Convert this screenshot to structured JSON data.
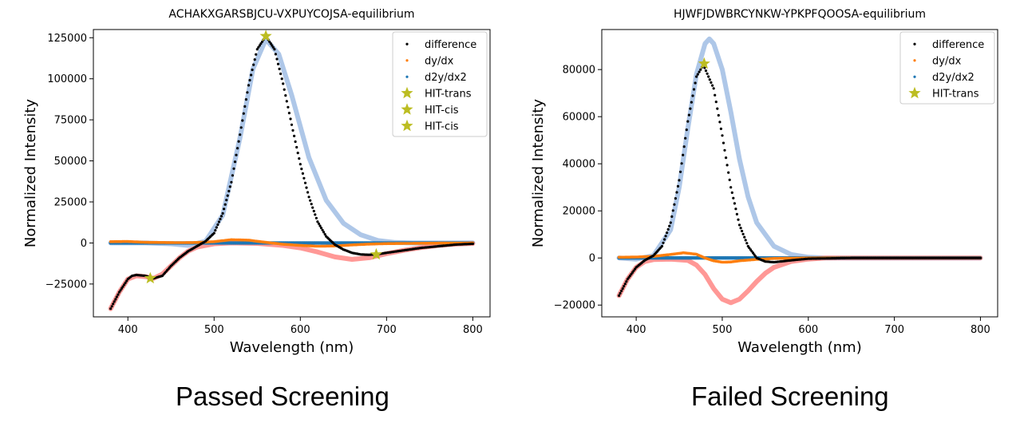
{
  "colors": {
    "difference": "#000000",
    "dy_dx": "#ff7f0e",
    "d2y_dx2": "#1f77b4",
    "hit_marker": "#bcbd22",
    "fit_blue": "#aec7e8",
    "fit_red": "#ff9896"
  },
  "captions": {
    "left": "Passed Screening",
    "right": "Failed Screening"
  },
  "chart_data": [
    {
      "type": "scatter",
      "title": "ACHAKXGARSBJCU-VXPUYCOJSA-equilibrium",
      "xlabel": "Wavelength (nm)",
      "ylabel": "Normalized Intensity",
      "xlim": [
        360,
        820
      ],
      "ylim": [
        -45000,
        130000
      ],
      "xticks": [
        400,
        500,
        600,
        700,
        800
      ],
      "yticks": [
        -25000,
        0,
        25000,
        50000,
        75000,
        100000,
        125000
      ],
      "ytick_labels": [
        "−25000",
        "0",
        "25000",
        "50000",
        "75000",
        "100000",
        "125000"
      ],
      "grid": false,
      "legend_position": "top-right",
      "legend": [
        "difference",
        "dy/dx",
        "d2y/dx2",
        "HIT-trans",
        "HIT-cis",
        "HIT-cis"
      ],
      "series": [
        {
          "name": "difference",
          "marker": "dot",
          "x": [
            380,
            390,
            400,
            405,
            410,
            420,
            430,
            440,
            450,
            460,
            470,
            480,
            490,
            500,
            510,
            520,
            530,
            540,
            550,
            560,
            570,
            580,
            590,
            600,
            610,
            620,
            630,
            640,
            650,
            660,
            670,
            680,
            690,
            700,
            720,
            740,
            760,
            780,
            800
          ],
          "y": [
            -40000,
            -30000,
            -22000,
            -20000,
            -19500,
            -20000,
            -21500,
            -20000,
            -14000,
            -9000,
            -5000,
            -2000,
            1000,
            6000,
            18000,
            37000,
            66000,
            96000,
            118000,
            126000,
            118000,
            97000,
            72000,
            48000,
            28000,
            13000,
            4000,
            -1000,
            -4000,
            -6000,
            -7000,
            -7200,
            -6800,
            -6000,
            -4500,
            -3000,
            -2000,
            -1000,
            -500
          ]
        },
        {
          "name": "dy/dx",
          "marker": "dot",
          "x": [
            380,
            400,
            420,
            440,
            460,
            480,
            500,
            520,
            540,
            560,
            580,
            600,
            620,
            640,
            660,
            680,
            700,
            720,
            740,
            760,
            780,
            800
          ],
          "y": [
            800,
            900,
            400,
            300,
            200,
            300,
            800,
            2000,
            1700,
            400,
            -800,
            -1500,
            -2000,
            -1800,
            -1200,
            -700,
            -400,
            -300,
            -200,
            -100,
            -50,
            0
          ]
        },
        {
          "name": "d2y/dx2",
          "marker": "dot",
          "x": [
            380,
            800
          ],
          "y": [
            0,
            0
          ]
        },
        {
          "name": "fit-blue",
          "marker": "thick-line",
          "x": [
            380,
            420,
            450,
            470,
            490,
            510,
            530,
            545,
            560,
            575,
            590,
            610,
            630,
            650,
            670,
            690,
            710,
            730,
            760,
            800
          ],
          "y": [
            0,
            0,
            -500,
            -1500,
            1000,
            17000,
            64000,
            106000,
            124000,
            115000,
            90000,
            52000,
            26000,
            12000,
            5000,
            1500,
            300,
            0,
            0,
            0
          ]
        },
        {
          "name": "fit-red",
          "marker": "thick-line",
          "x": [
            380,
            390,
            400,
            410,
            420,
            430,
            440,
            450,
            460,
            470,
            480,
            500,
            520,
            550,
            580,
            600,
            620,
            640,
            660,
            680,
            700,
            720,
            740,
            760,
            780,
            800
          ],
          "y": [
            -40000,
            -30000,
            -22000,
            -20000,
            -20500,
            -21500,
            -19000,
            -14000,
            -9000,
            -5000,
            -2500,
            -500,
            0,
            -300,
            -1500,
            -3000,
            -5500,
            -8500,
            -10000,
            -9000,
            -6500,
            -4500,
            -2800,
            -1500,
            -700,
            -300
          ]
        },
        {
          "name": "HIT-trans",
          "marker": "star",
          "x": [
            560
          ],
          "y": [
            126000
          ]
        },
        {
          "name": "HIT-cis",
          "marker": "star",
          "x": [
            426
          ],
          "y": [
            -21500
          ]
        },
        {
          "name": "HIT-cis",
          "marker": "star",
          "x": [
            688
          ],
          "y": [
            -7000
          ]
        }
      ]
    },
    {
      "type": "scatter",
      "title": "HJWFJDWBRCYNKW-YPKPFQOOSA-equilibrium",
      "xlabel": "Wavelength (nm)",
      "ylabel": "Normalized Intensity",
      "xlim": [
        360,
        820
      ],
      "ylim": [
        -25000,
        97000
      ],
      "xticks": [
        400,
        500,
        600,
        700,
        800
      ],
      "yticks": [
        -20000,
        0,
        20000,
        40000,
        60000,
        80000
      ],
      "ytick_labels": [
        "−20000",
        "0",
        "20000",
        "40000",
        "60000",
        "80000"
      ],
      "grid": false,
      "legend_position": "top-right",
      "legend": [
        "difference",
        "dy/dx",
        "d2y/dx2",
        "HIT-trans"
      ],
      "series": [
        {
          "name": "difference",
          "marker": "dot",
          "x": [
            380,
            390,
            400,
            410,
            420,
            430,
            440,
            450,
            460,
            470,
            478,
            490,
            500,
            510,
            520,
            530,
            540,
            550,
            560,
            580,
            600,
            650,
            700,
            800
          ],
          "y": [
            -16000,
            -9000,
            -4000,
            -1000,
            1000,
            5000,
            15000,
            33000,
            58000,
            77000,
            82000,
            72000,
            52000,
            30000,
            14000,
            5000,
            0,
            -1500,
            -1800,
            -1000,
            -300,
            0,
            0,
            0
          ]
        },
        {
          "name": "dy/dx",
          "marker": "dot",
          "x": [
            380,
            400,
            420,
            440,
            455,
            470,
            480,
            490,
            500,
            510,
            520,
            540,
            560,
            580,
            600,
            800
          ],
          "y": [
            300,
            400,
            700,
            1500,
            2200,
            1600,
            0,
            -1200,
            -1800,
            -1700,
            -1200,
            -600,
            -200,
            -100,
            0,
            0
          ]
        },
        {
          "name": "d2y/dx2",
          "marker": "dot",
          "x": [
            380,
            800
          ],
          "y": [
            0,
            0
          ]
        },
        {
          "name": "fit-blue",
          "marker": "thick-line",
          "x": [
            380,
            400,
            420,
            440,
            450,
            460,
            470,
            480,
            485,
            490,
            500,
            510,
            520,
            530,
            540,
            560,
            580,
            600,
            620,
            800
          ],
          "y": [
            0,
            -500,
            1000,
            12000,
            30000,
            55000,
            78000,
            91000,
            93000,
            91000,
            80000,
            62000,
            42000,
            26000,
            15000,
            5000,
            1500,
            300,
            0,
            0
          ]
        },
        {
          "name": "fit-red",
          "marker": "thick-line",
          "x": [
            380,
            390,
            400,
            410,
            420,
            440,
            460,
            470,
            480,
            490,
            500,
            510,
            520,
            530,
            540,
            550,
            560,
            580,
            600,
            620,
            640,
            800
          ],
          "y": [
            -16000,
            -9000,
            -4000,
            -1500,
            -700,
            -500,
            -1000,
            -3000,
            -7000,
            -13000,
            -17500,
            -19000,
            -17500,
            -14000,
            -10000,
            -6500,
            -4000,
            -1500,
            -500,
            0,
            0,
            0
          ]
        },
        {
          "name": "HIT-trans",
          "marker": "star",
          "x": [
            479
          ],
          "y": [
            82500
          ]
        }
      ]
    }
  ]
}
